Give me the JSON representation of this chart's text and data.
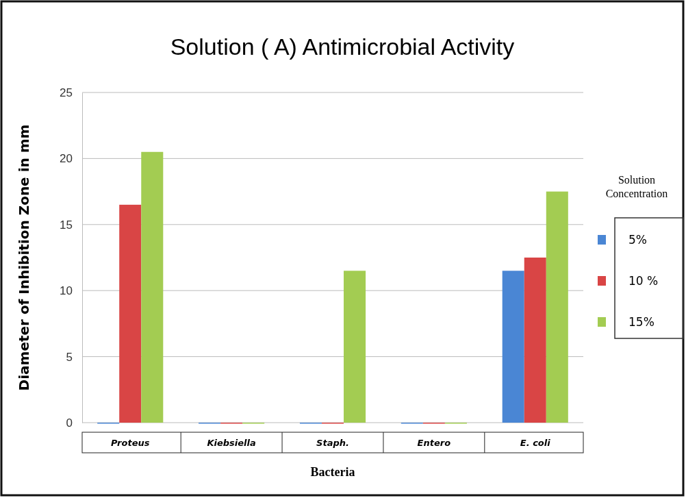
{
  "chart_data": {
    "type": "bar",
    "title": "Solution ( A)  Antimicrobial Activity",
    "xlabel": "Bacteria",
    "ylabel": "Diameter of Inhibition Zone in mm",
    "legend_title": "Solution Concentration",
    "categories": [
      "Proteus",
      "Kiebsiella",
      "Staph.",
      "Entero",
      "E. coli"
    ],
    "series": [
      {
        "name": "5%",
        "color": "#4a86d4",
        "values": [
          0,
          0,
          0,
          0,
          11.5
        ]
      },
      {
        "name": "10 %",
        "color": "#d94545",
        "values": [
          16.5,
          0,
          0,
          0,
          12.5
        ]
      },
      {
        "name": "15%",
        "color": "#a3cc52",
        "values": [
          20.5,
          0,
          11.5,
          0,
          17.5
        ]
      }
    ],
    "ylim": [
      0,
      25
    ],
    "yticks": [
      0,
      5,
      10,
      15,
      20,
      25
    ],
    "grid": "y",
    "legend": "right"
  }
}
